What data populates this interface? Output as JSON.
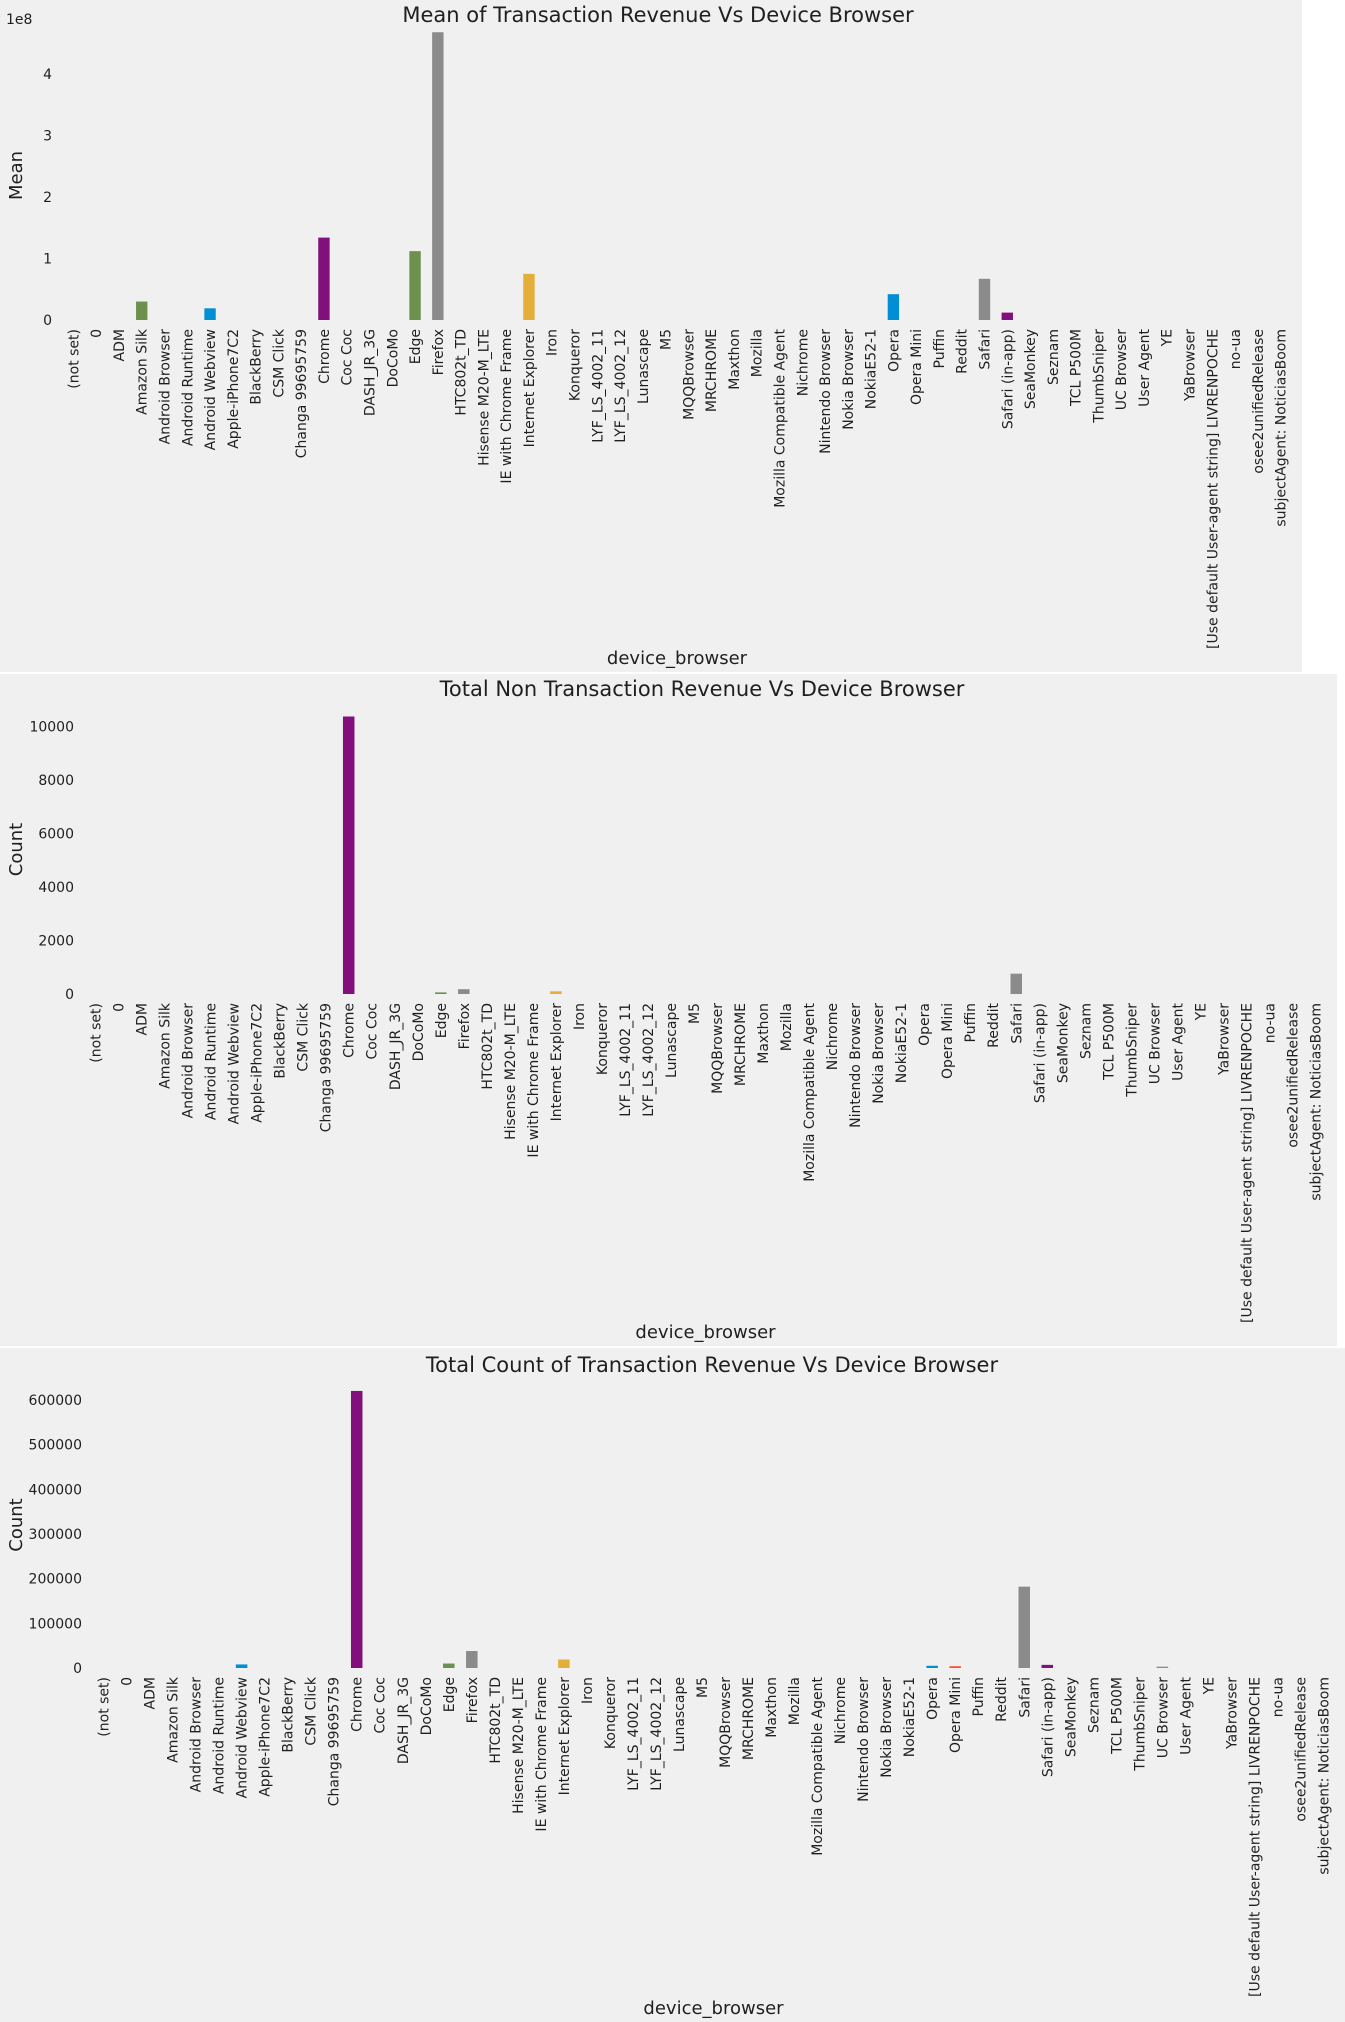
{
  "chart_data": [
    {
      "type": "bar",
      "title": "Mean of Transaction Revenue Vs Device Browser",
      "xlabel": "device_browser",
      "ylabel": "Mean",
      "y_offset_label": "1e8",
      "ylim": [
        0,
        4.7
      ],
      "yticks": [
        0,
        1,
        2,
        3,
        4
      ],
      "ytick_labels": [
        "0",
        "1",
        "2",
        "3",
        "4"
      ],
      "grid": false,
      "categories": [
        "(not set)",
        "0",
        "ADM",
        "Amazon Silk",
        "Android Browser",
        "Android Runtime",
        "Android Webview",
        "Apple-iPhone7C2",
        "BlackBerry",
        "CSM Click",
        "Changa 99695759",
        "Chrome",
        "Coc Coc",
        "DASH_JR_3G",
        "DoCoMo",
        "Edge",
        "Firefox",
        "HTC802t_TD",
        "Hisense M20-M_LTE",
        "IE with Chrome Frame",
        "Internet Explorer",
        "Iron",
        "Konqueror",
        "LYF_LS_4002_11",
        "LYF_LS_4002_12",
        "Lunascape",
        "M5",
        "MQQBrowser",
        "MRCHROME",
        "Maxthon",
        "Mozilla",
        "Mozilla Compatible Agent",
        "Nichrome",
        "Nintendo Browser",
        "Nokia Browser",
        "NokiaE52-1",
        "Opera",
        "Opera Mini",
        "Puffin",
        "Reddit",
        "Safari",
        "Safari (in-app)",
        "SeaMonkey",
        "Seznam",
        "TCL P500M",
        "ThumbSniper",
        "UC Browser",
        "User Agent",
        "YE",
        "YaBrowser",
        "[Use default User-agent string] LIVRENPOCHE",
        "no-ua",
        "osee2unifiedRelease",
        "subjectAgent: NoticiasBoom"
      ],
      "values": [
        0,
        0,
        0,
        0.3,
        0,
        0,
        0.19,
        0,
        0,
        0,
        0,
        1.34,
        0,
        0,
        0,
        1.12,
        4.68,
        0,
        0,
        0,
        0.75,
        0,
        0,
        0,
        0,
        0,
        0,
        0,
        0,
        0,
        0,
        0,
        0,
        0,
        0,
        0,
        0.42,
        0,
        0,
        0,
        0.67,
        0.12,
        0,
        0,
        0,
        0,
        0,
        0,
        0,
        0,
        0,
        0,
        0,
        0
      ]
    },
    {
      "type": "bar",
      "title": "Total Non Transaction Revenue Vs Device Browser",
      "xlabel": "device_browser",
      "ylabel": "Count",
      "ylim": [
        0,
        10800
      ],
      "yticks": [
        0,
        2000,
        4000,
        6000,
        8000,
        10000
      ],
      "ytick_labels": [
        "0",
        "2000",
        "4000",
        "6000",
        "8000",
        "10000"
      ],
      "grid": false,
      "categories": [
        "(not set)",
        "0",
        "ADM",
        "Amazon Silk",
        "Android Browser",
        "Android Runtime",
        "Android Webview",
        "Apple-iPhone7C2",
        "BlackBerry",
        "CSM Click",
        "Changa 99695759",
        "Chrome",
        "Coc Coc",
        "DASH_JR_3G",
        "DoCoMo",
        "Edge",
        "Firefox",
        "HTC802t_TD",
        "Hisense M20-M_LTE",
        "IE with Chrome Frame",
        "Internet Explorer",
        "Iron",
        "Konqueror",
        "LYF_LS_4002_11",
        "LYF_LS_4002_12",
        "Lunascape",
        "M5",
        "MQQBrowser",
        "MRCHROME",
        "Maxthon",
        "Mozilla",
        "Mozilla Compatible Agent",
        "Nichrome",
        "Nintendo Browser",
        "Nokia Browser",
        "NokiaE52-1",
        "Opera",
        "Opera Mini",
        "Puffin",
        "Reddit",
        "Safari",
        "Safari (in-app)",
        "SeaMonkey",
        "Seznam",
        "TCL P500M",
        "ThumbSniper",
        "UC Browser",
        "User Agent",
        "YE",
        "YaBrowser",
        "[Use default User-agent string] LIVRENPOCHE",
        "no-ua",
        "osee2unifiedRelease",
        "subjectAgent: NoticiasBoom"
      ],
      "values": [
        0,
        0,
        0,
        0,
        0,
        0,
        0,
        0,
        0,
        0,
        0,
        10370,
        0,
        0,
        0,
        60,
        180,
        0,
        0,
        0,
        100,
        0,
        0,
        0,
        0,
        0,
        0,
        0,
        0,
        0,
        0,
        0,
        0,
        0,
        0,
        0,
        0,
        0,
        0,
        0,
        760,
        0,
        0,
        0,
        0,
        0,
        0,
        0,
        0,
        0,
        0,
        0,
        0,
        0
      ]
    },
    {
      "type": "bar",
      "title": "Total Count of Transaction Revenue Vs Device Browser",
      "xlabel": "device_browser",
      "ylabel": "Count",
      "ylim": [
        0,
        640000
      ],
      "yticks": [
        0,
        100000,
        200000,
        300000,
        400000,
        500000,
        600000
      ],
      "ytick_labels": [
        "0",
        "100000",
        "200000",
        "300000",
        "400000",
        "500000",
        "600000"
      ],
      "grid": false,
      "categories": [
        "(not set)",
        "0",
        "ADM",
        "Amazon Silk",
        "Android Browser",
        "Android Runtime",
        "Android Webview",
        "Apple-iPhone7C2",
        "BlackBerry",
        "CSM Click",
        "Changa 99695759",
        "Chrome",
        "Coc Coc",
        "DASH_JR_3G",
        "DoCoMo",
        "Edge",
        "Firefox",
        "HTC802t_TD",
        "Hisense M20-M_LTE",
        "IE with Chrome Frame",
        "Internet Explorer",
        "Iron",
        "Konqueror",
        "LYF_LS_4002_11",
        "LYF_LS_4002_12",
        "Lunascape",
        "M5",
        "MQQBrowser",
        "MRCHROME",
        "Maxthon",
        "Mozilla",
        "Mozilla Compatible Agent",
        "Nichrome",
        "Nintendo Browser",
        "Nokia Browser",
        "NokiaE52-1",
        "Opera",
        "Opera Mini",
        "Puffin",
        "Reddit",
        "Safari",
        "Safari (in-app)",
        "SeaMonkey",
        "Seznam",
        "TCL P500M",
        "ThumbSniper",
        "UC Browser",
        "User Agent",
        "YE",
        "YaBrowser",
        "[Use default User-agent string] LIVRENPOCHE",
        "no-ua",
        "osee2unifiedRelease",
        "subjectAgent: NoticiasBoom"
      ],
      "values": [
        0,
        0,
        0,
        0,
        0,
        0,
        8000,
        0,
        0,
        0,
        0,
        620000,
        0,
        0,
        0,
        10000,
        38000,
        0,
        0,
        0,
        19000,
        0,
        0,
        0,
        0,
        0,
        0,
        0,
        0,
        0,
        0,
        0,
        0,
        0,
        0,
        0,
        5000,
        4000,
        0,
        0,
        182000,
        7000,
        0,
        0,
        0,
        0,
        3000,
        0,
        0,
        0,
        0,
        0,
        0,
        0
      ]
    }
  ],
  "palette": [
    "#008fd5",
    "#fc4f30",
    "#e5ae38",
    "#6d904f",
    "#8b8b8b",
    "#810f7c"
  ]
}
